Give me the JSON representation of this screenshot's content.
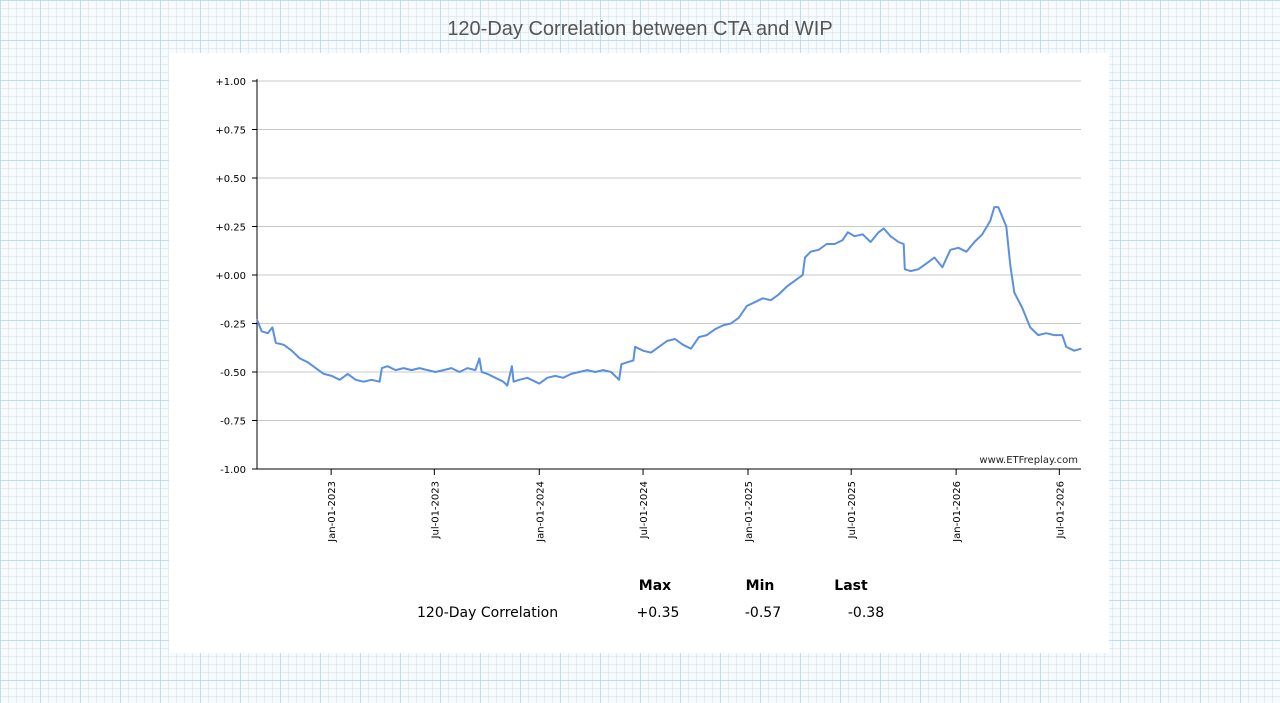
{
  "page": {
    "title": "120-Day Correlation between CTA and WIP"
  },
  "chart_data": {
    "type": "line",
    "title": "120-Day Correlation between CTA and WIP",
    "watermark": "www.ETFreplay.com",
    "line_color": "#5b8fe0",
    "ylim": [
      -1,
      1
    ],
    "y_ticks": [
      "+1.00",
      "+0.75",
      "+0.50",
      "+0.25",
      "+0.00",
      "-0.25",
      "-0.50",
      "-0.75",
      "-1.00"
    ],
    "x_ticks": [
      "Jan-01-2023",
      "Jul-01-2023",
      "Jan-01-2024",
      "Jul-01-2024",
      "Jan-01-2025",
      "Jul-01-2025",
      "Jan-01-2026",
      "Jul-01-2026"
    ],
    "x_range": [
      "2022-08-24",
      "2026-08-08"
    ],
    "grid": true,
    "series": [
      {
        "values": [
          [
            "2022-08-24",
            -0.23
          ],
          [
            "2022-09-01",
            -0.29
          ],
          [
            "2022-09-12",
            -0.3
          ],
          [
            "2022-09-20",
            -0.27
          ],
          [
            "2022-09-26",
            -0.35
          ],
          [
            "2022-10-10",
            -0.36
          ],
          [
            "2022-10-24",
            -0.39
          ],
          [
            "2022-11-07",
            -0.43
          ],
          [
            "2022-11-21",
            -0.45
          ],
          [
            "2022-12-05",
            -0.48
          ],
          [
            "2022-12-19",
            -0.51
          ],
          [
            "2023-01-02",
            -0.52
          ],
          [
            "2023-01-16",
            -0.54
          ],
          [
            "2023-01-30",
            -0.51
          ],
          [
            "2023-02-13",
            -0.54
          ],
          [
            "2023-02-27",
            -0.55
          ],
          [
            "2023-03-13",
            -0.54
          ],
          [
            "2023-03-27",
            -0.55
          ],
          [
            "2023-03-31",
            -0.48
          ],
          [
            "2023-04-10",
            -0.47
          ],
          [
            "2023-04-24",
            -0.49
          ],
          [
            "2023-05-08",
            -0.48
          ],
          [
            "2023-05-22",
            -0.49
          ],
          [
            "2023-06-05",
            -0.48
          ],
          [
            "2023-06-19",
            -0.49
          ],
          [
            "2023-07-03",
            -0.5
          ],
          [
            "2023-07-17",
            -0.49
          ],
          [
            "2023-07-31",
            -0.48
          ],
          [
            "2023-08-14",
            -0.5
          ],
          [
            "2023-08-28",
            -0.48
          ],
          [
            "2023-09-11",
            -0.49
          ],
          [
            "2023-09-18",
            -0.43
          ],
          [
            "2023-09-22",
            -0.5
          ],
          [
            "2023-10-02",
            -0.51
          ],
          [
            "2023-10-16",
            -0.53
          ],
          [
            "2023-10-30",
            -0.55
          ],
          [
            "2023-11-06",
            -0.57
          ],
          [
            "2023-11-14",
            -0.47
          ],
          [
            "2023-11-17",
            -0.55
          ],
          [
            "2023-11-27",
            -0.54
          ],
          [
            "2023-12-11",
            -0.53
          ],
          [
            "2023-12-25",
            -0.55
          ],
          [
            "2024-01-01",
            -0.56
          ],
          [
            "2024-01-15",
            -0.53
          ],
          [
            "2024-01-29",
            -0.52
          ],
          [
            "2024-02-12",
            -0.53
          ],
          [
            "2024-02-26",
            -0.51
          ],
          [
            "2024-03-11",
            -0.5
          ],
          [
            "2024-03-25",
            -0.49
          ],
          [
            "2024-04-08",
            -0.5
          ],
          [
            "2024-04-22",
            -0.49
          ],
          [
            "2024-05-06",
            -0.5
          ],
          [
            "2024-05-20",
            -0.54
          ],
          [
            "2024-05-24",
            -0.46
          ],
          [
            "2024-06-03",
            -0.45
          ],
          [
            "2024-06-14",
            -0.44
          ],
          [
            "2024-06-17",
            -0.37
          ],
          [
            "2024-07-01",
            -0.39
          ],
          [
            "2024-07-15",
            -0.4
          ],
          [
            "2024-07-29",
            -0.37
          ],
          [
            "2024-08-12",
            -0.34
          ],
          [
            "2024-08-26",
            -0.33
          ],
          [
            "2024-09-09",
            -0.36
          ],
          [
            "2024-09-23",
            -0.38
          ],
          [
            "2024-10-07",
            -0.32
          ],
          [
            "2024-10-21",
            -0.31
          ],
          [
            "2024-11-04",
            -0.28
          ],
          [
            "2024-11-18",
            -0.26
          ],
          [
            "2024-12-02",
            -0.25
          ],
          [
            "2024-12-16",
            -0.22
          ],
          [
            "2024-12-30",
            -0.16
          ],
          [
            "2025-01-13",
            -0.14
          ],
          [
            "2025-01-27",
            -0.12
          ],
          [
            "2025-02-10",
            -0.13
          ],
          [
            "2025-02-24",
            -0.1
          ],
          [
            "2025-03-10",
            -0.06
          ],
          [
            "2025-03-24",
            -0.03
          ],
          [
            "2025-04-07",
            0.0
          ],
          [
            "2025-04-11",
            0.09
          ],
          [
            "2025-04-21",
            0.12
          ],
          [
            "2025-05-05",
            0.13
          ],
          [
            "2025-05-19",
            0.16
          ],
          [
            "2025-06-02",
            0.16
          ],
          [
            "2025-06-16",
            0.18
          ],
          [
            "2025-06-25",
            0.22
          ],
          [
            "2025-07-07",
            0.2
          ],
          [
            "2025-07-21",
            0.21
          ],
          [
            "2025-08-04",
            0.17
          ],
          [
            "2025-08-18",
            0.22
          ],
          [
            "2025-08-27",
            0.24
          ],
          [
            "2025-09-08",
            0.2
          ],
          [
            "2025-09-22",
            0.17
          ],
          [
            "2025-10-01",
            0.16
          ],
          [
            "2025-10-03",
            0.03
          ],
          [
            "2025-10-13",
            0.02
          ],
          [
            "2025-10-27",
            0.03
          ],
          [
            "2025-11-10",
            0.06
          ],
          [
            "2025-11-24",
            0.09
          ],
          [
            "2025-12-08",
            0.04
          ],
          [
            "2025-12-22",
            0.13
          ],
          [
            "2026-01-05",
            0.14
          ],
          [
            "2026-01-19",
            0.12
          ],
          [
            "2026-02-02",
            0.17
          ],
          [
            "2026-02-16",
            0.21
          ],
          [
            "2026-03-02",
            0.28
          ],
          [
            "2026-03-09",
            0.35
          ],
          [
            "2026-03-16",
            0.35
          ],
          [
            "2026-03-30",
            0.25
          ],
          [
            "2026-04-06",
            0.05
          ],
          [
            "2026-04-13",
            -0.09
          ],
          [
            "2026-04-27",
            -0.17
          ],
          [
            "2026-05-11",
            -0.27
          ],
          [
            "2026-05-25",
            -0.31
          ],
          [
            "2026-06-08",
            -0.3
          ],
          [
            "2026-06-22",
            -0.31
          ],
          [
            "2026-07-06",
            -0.31
          ],
          [
            "2026-07-13",
            -0.37
          ],
          [
            "2026-07-27",
            -0.39
          ],
          [
            "2026-08-08",
            -0.38
          ]
        ]
      }
    ]
  },
  "stats": {
    "headers": [
      "Max",
      "Min",
      "Last"
    ],
    "row_label": "120-Day Correlation",
    "values": [
      "+0.35",
      "-0.57",
      "-0.38"
    ]
  }
}
